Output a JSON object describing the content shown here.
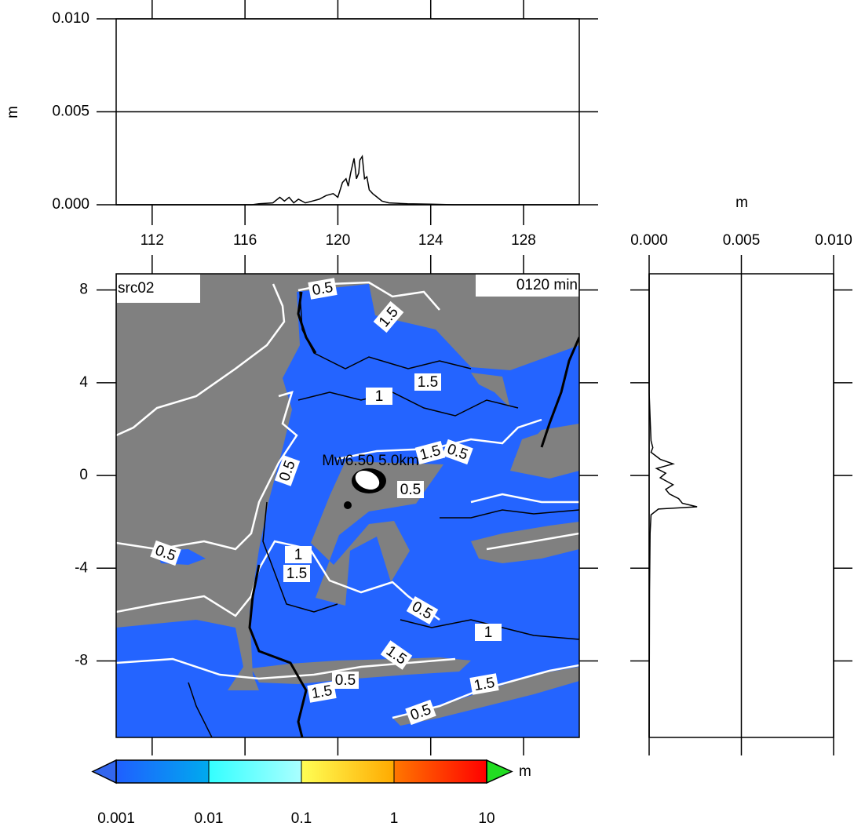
{
  "chart_data": [
    {
      "type": "profile-x",
      "ylabel": "m",
      "x": [
        110.45,
        116.3,
        116.6,
        117.2,
        117.5,
        117.7,
        117.9,
        118.1,
        118.3,
        118.6,
        118.9,
        119.2,
        119.5,
        119.8,
        120.0,
        120.2,
        120.35,
        120.45,
        120.55,
        120.7,
        120.8,
        120.9,
        120.95,
        121.05,
        121.15,
        121.25,
        121.35,
        121.5,
        121.7,
        121.9,
        122.2,
        123.0,
        124.0,
        125.0,
        130.4
      ],
      "values": [
        0,
        0,
        5e-05,
        0.0001,
        0.0004,
        0.0002,
        0.0004,
        0.0001,
        0.0003,
        0.0001,
        0.0002,
        0.0003,
        0.0005,
        0.0006,
        0.0004,
        0.0012,
        0.0014,
        0.001,
        0.0017,
        0.0025,
        0.0014,
        0.0017,
        0.0024,
        0.0026,
        0.0014,
        0.0015,
        0.0008,
        0.0006,
        0.0004,
        0.0002,
        0.0001,
        5e-05,
        3e-05,
        0,
        0
      ],
      "color": "#000000",
      "xlim": [
        110.45,
        130.4
      ],
      "xticks": [
        112,
        116,
        120,
        124,
        128
      ],
      "ylim": [
        0,
        0.01
      ],
      "yticks": [
        {
          "value": 0,
          "label": "0.000"
        },
        {
          "value": 0.005,
          "label": "0.005"
        },
        {
          "value": 0.01,
          "label": "0.010"
        }
      ],
      "grid": true
    },
    {
      "type": "profile-y",
      "xlabel": "m",
      "y": [
        8.7,
        3.6,
        2.5,
        1.5,
        1.2,
        1.0,
        0.7,
        0.5,
        0.3,
        0.1,
        -0.1,
        -0.4,
        -0.6,
        -0.8,
        -1.0,
        -1.2,
        -1.35,
        -1.45,
        -1.7,
        -2.5,
        -5.0,
        -11.3
      ],
      "values": [
        0,
        0,
        5e-05,
        0.0001,
        0.0002,
        0.0001,
        0.0006,
        0.0013,
        0.0004,
        0.0009,
        0.0006,
        0.0013,
        0.0009,
        0.0011,
        0.0016,
        0.0018,
        0.0026,
        0.0005,
        0.0001,
        5e-05,
        2e-05,
        0
      ],
      "color": "#000000",
      "xlim": [
        0,
        0.01
      ],
      "xticks": [
        {
          "value": 0,
          "label": "0.000"
        },
        {
          "value": 0.005,
          "label": "0.005"
        },
        {
          "value": 0.01,
          "label": "0.010"
        }
      ],
      "ylim": [
        -11.3,
        8.7
      ],
      "grid": true
    },
    {
      "type": "map",
      "title": "src02",
      "time_label": "0120 min",
      "source_label": "Mw6.50  5.0km",
      "xlim": [
        110.45,
        130.4
      ],
      "ylim": [
        -11.3,
        8.7
      ],
      "yticks": [
        8,
        4,
        0,
        -4,
        -8
      ],
      "land_color": "#808080",
      "sea_color": "#2464ff",
      "contour_labels": [
        "0.5",
        "1.5",
        "1",
        "1.5",
        "1.5",
        "0.5",
        "0.5",
        "0.5",
        "0.5",
        "1",
        "1.5",
        "0.5",
        "1",
        "1.5",
        "1.5",
        "0.5",
        "1.5",
        "0.5"
      ]
    },
    {
      "type": "colorbar",
      "levels": [
        0.001,
        0.01,
        0.1,
        1,
        10
      ],
      "log_scale": true,
      "unit": "m",
      "colors": [
        [
          "#1f5fff",
          "#00aaee"
        ],
        [
          "#33ffff",
          "#aaffff"
        ],
        [
          "#ffff55",
          "#ffaa00"
        ],
        [
          "#ff7700",
          "#ff0000"
        ]
      ],
      "under_color": "#3366ee",
      "over_color": "#22dd22"
    }
  ]
}
